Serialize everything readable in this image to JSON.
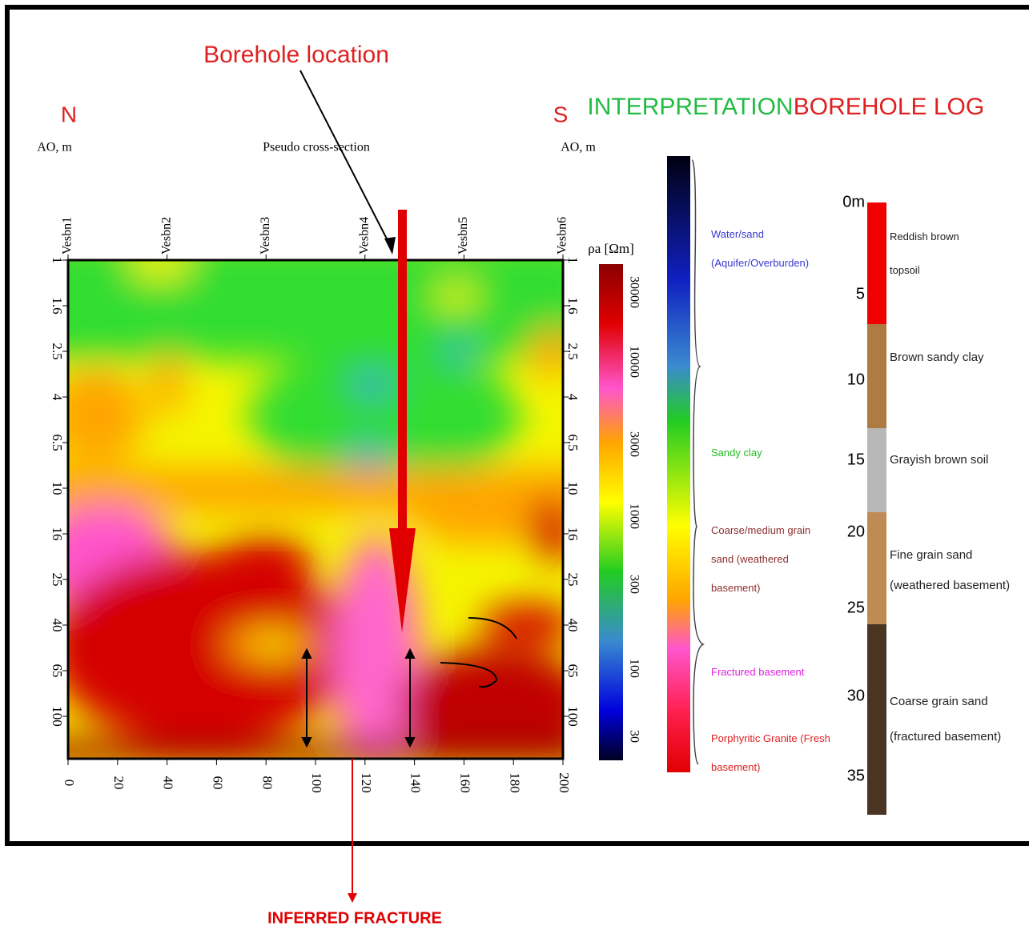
{
  "header": {
    "borehole_location": "Borehole location"
  },
  "section": {
    "north": "N",
    "south": "S",
    "title": "Pseudo cross-section",
    "stations": [
      "Vesbn1",
      "Vesbn2",
      "Vesbn3",
      "Vesbn4",
      "Vesbn5",
      "Vesbn6"
    ],
    "depth_axis_label": "AO, m",
    "depth_ticks": [
      1,
      1.6,
      2.5,
      4,
      6.5,
      10,
      16,
      25,
      40,
      65,
      100
    ],
    "distance_ticks": [
      0,
      20,
      40,
      60,
      80,
      100,
      120,
      140,
      160,
      180,
      200
    ]
  },
  "colorbar": {
    "label": "ρa [Ωm]",
    "ticks": [
      30000,
      10000,
      3000,
      1000,
      300,
      100,
      30
    ]
  },
  "interpretation": {
    "title": "INTERPRETATION",
    "units": [
      "Water/sand (Aquifer/Overburden)",
      "Sandy clay",
      "Coarse/medium grain sand (weathered basement)",
      "Fractured basement",
      "Porphyritic Granite (Fresh basement)"
    ]
  },
  "borehole_log": {
    "title": "BOREHOLE LOG",
    "depths": [
      "0m",
      5,
      10,
      15,
      20,
      25,
      30,
      35
    ],
    "layers": [
      "Reddish brown topsoil",
      "Brown sandy clay",
      "Grayish brown soil",
      "Fine grain sand (weathered basement)",
      "Coarse grain sand (fractured basement)"
    ]
  },
  "annotation": "INFERRED FRACTURE"
}
